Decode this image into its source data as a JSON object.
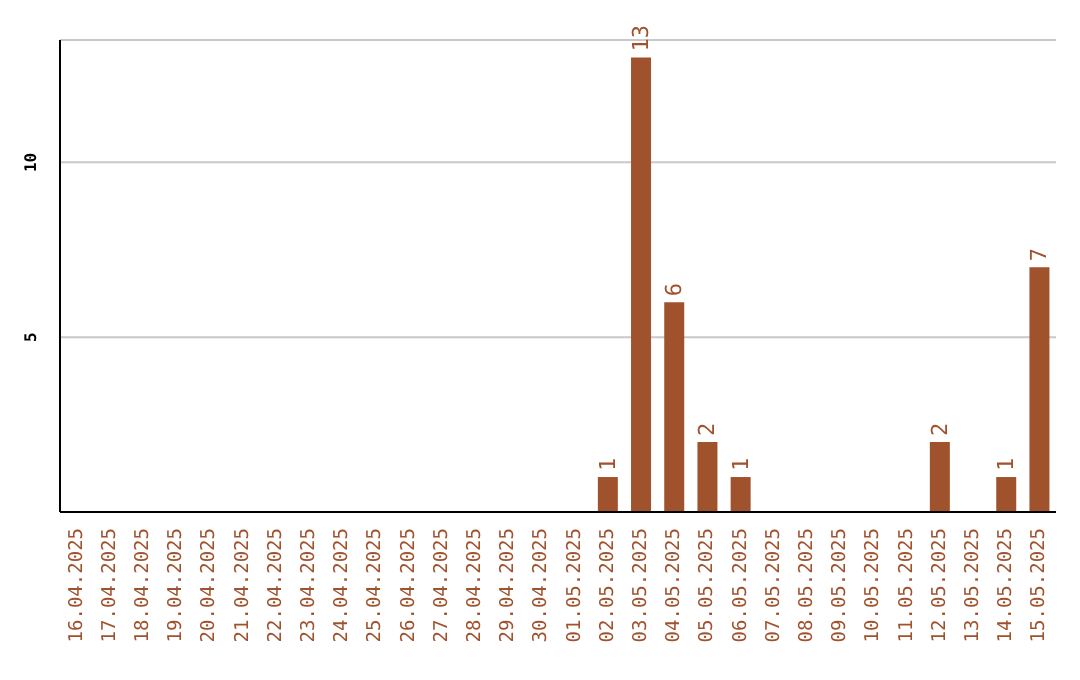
{
  "chart_data": {
    "type": "bar",
    "categories": [
      "16.04.2025",
      "17.04.2025",
      "18.04.2025",
      "19.04.2025",
      "20.04.2025",
      "21.04.2025",
      "22.04.2025",
      "23.04.2025",
      "24.04.2025",
      "25.04.2025",
      "26.04.2025",
      "27.04.2025",
      "28.04.2025",
      "29.04.2025",
      "30.04.2025",
      "01.05.2025",
      "02.05.2025",
      "03.05.2025",
      "04.05.2025",
      "05.05.2025",
      "06.05.2025",
      "07.05.2025",
      "08.05.2025",
      "09.05.2025",
      "10.05.2025",
      "11.05.2025",
      "12.05.2025",
      "13.05.2025",
      "14.05.2025",
      "15.05.2025"
    ],
    "values": [
      0,
      0,
      0,
      0,
      0,
      0,
      0,
      0,
      0,
      0,
      0,
      0,
      0,
      0,
      0,
      0,
      1,
      13,
      6,
      2,
      1,
      0,
      0,
      0,
      0,
      0,
      2,
      0,
      1,
      7
    ],
    "value_labels": [
      null,
      null,
      null,
      null,
      null,
      null,
      null,
      null,
      null,
      null,
      null,
      null,
      null,
      null,
      null,
      null,
      "1",
      "13",
      "6",
      "2",
      "1",
      null,
      null,
      null,
      null,
      null,
      "2",
      null,
      "1",
      "7"
    ],
    "color": "#a0522d",
    "ylim": [
      0,
      13.5
    ],
    "yticks": [
      5,
      10
    ],
    "grid": "y"
  }
}
